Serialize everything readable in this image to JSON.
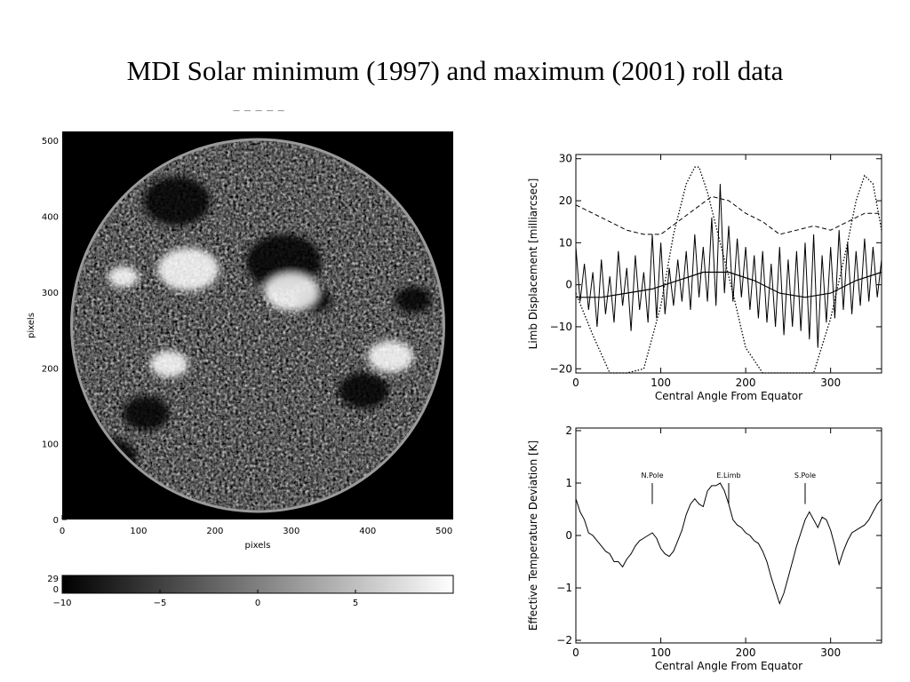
{
  "slide": {
    "title": "MDI Solar minimum (1997) and maximum (2001) roll data",
    "header_fragment": "— — — — —"
  },
  "colors": {
    "background": "#ffffff",
    "ink": "#000000",
    "disk_edge": "#9a9a9a"
  },
  "chart_data": [
    {
      "type": "heatmap",
      "title": "",
      "xlabel": "pixels",
      "ylabel": "pixels",
      "xlim": [
        0,
        512
      ],
      "ylim": [
        0,
        512
      ],
      "x_ticks": [
        "0",
        "100",
        "200",
        "300",
        "400",
        "500"
      ],
      "y_ticks": [
        "0",
        "100",
        "200",
        "300",
        "400",
        "500"
      ],
      "description_values": {
        "disk_center": [
          256,
          256
        ],
        "disk_radius": 250,
        "dark_regions": [
          [
            60,
            80,
            35
          ],
          [
            150,
            420,
            40
          ],
          [
            290,
            340,
            45
          ],
          [
            395,
            170,
            30
          ],
          [
            460,
            290,
            22
          ],
          [
            110,
            140,
            28
          ],
          [
            330,
            290,
            20
          ]
        ],
        "bright_regions": [
          [
            165,
            330,
            40
          ],
          [
            300,
            300,
            35
          ],
          [
            430,
            215,
            30
          ],
          [
            140,
            205,
            25
          ],
          [
            80,
            320,
            20
          ]
        ]
      },
      "colorbar": {
        "range": [
          -10,
          10
        ],
        "ticks": [
          "−10",
          "−5",
          "0",
          "5"
        ],
        "tick_values": [
          -10,
          -5,
          0,
          5
        ],
        "side_labels": [
          "29",
          "0"
        ]
      }
    },
    {
      "type": "line",
      "title": "",
      "xlabel": "Central Angle From Equator",
      "ylabel": "Limb Displacement [milliarcsec]",
      "xlim": [
        0,
        360
      ],
      "ylim": [
        -21,
        31
      ],
      "x_ticks": [
        "0",
        "100",
        "200",
        "300"
      ],
      "x_tick_values": [
        0,
        100,
        200,
        300
      ],
      "y_ticks": [
        "−20",
        "−10",
        "0",
        "10",
        "20",
        "30"
      ],
      "y_tick_values": [
        -20,
        -10,
        0,
        10,
        20,
        30
      ],
      "series": [
        {
          "style": "dashed",
          "x": [
            0,
            20,
            40,
            60,
            80,
            100,
            120,
            140,
            160,
            180,
            200,
            220,
            240,
            260,
            280,
            300,
            320,
            340,
            360
          ],
          "y": [
            19,
            17,
            15,
            13,
            12,
            12,
            15,
            18,
            21,
            20,
            17,
            15,
            12,
            13,
            14,
            13,
            15,
            17,
            17
          ]
        },
        {
          "style": "dotted",
          "x": [
            0,
            20,
            40,
            60,
            80,
            100,
            115,
            130,
            140,
            145,
            155,
            170,
            185,
            200,
            220,
            240,
            260,
            280,
            300,
            320,
            330,
            340,
            350,
            360
          ],
          "y": [
            -2,
            -12,
            -21,
            -21,
            -20,
            -5,
            12,
            24,
            28,
            28,
            22,
            10,
            -2,
            -15,
            -21,
            -21,
            -21,
            -21,
            -8,
            10,
            20,
            26,
            24,
            13
          ]
        },
        {
          "style": "smooth-solid",
          "x": [
            0,
            30,
            60,
            90,
            120,
            150,
            180,
            210,
            240,
            270,
            300,
            330,
            360
          ],
          "y": [
            -3,
            -3,
            -2,
            -1,
            1,
            3,
            3,
            1,
            -2,
            -3,
            -2,
            1,
            3
          ]
        },
        {
          "style": "noisy-solid",
          "x": [
            0,
            5,
            10,
            15,
            20,
            25,
            30,
            35,
            40,
            45,
            50,
            55,
            60,
            65,
            70,
            75,
            80,
            85,
            90,
            95,
            100,
            105,
            110,
            115,
            120,
            125,
            130,
            135,
            140,
            145,
            150,
            155,
            160,
            165,
            170,
            175,
            180,
            185,
            190,
            195,
            200,
            205,
            210,
            215,
            220,
            225,
            230,
            235,
            240,
            245,
            250,
            255,
            260,
            265,
            270,
            275,
            280,
            285,
            290,
            295,
            300,
            305,
            310,
            315,
            320,
            325,
            330,
            335,
            340,
            345,
            350,
            355,
            360
          ],
          "y": [
            9,
            -4,
            5,
            -6,
            3,
            -10,
            6,
            -7,
            2,
            -9,
            8,
            -5,
            4,
            -11,
            7,
            -6,
            3,
            -9,
            12,
            -8,
            10,
            -7,
            4,
            -5,
            6,
            -4,
            8,
            -6,
            12,
            -3,
            9,
            -4,
            16,
            -5,
            24,
            -2,
            14,
            -4,
            11,
            -3,
            9,
            -6,
            7,
            -8,
            8,
            -9,
            5,
            -10,
            9,
            -12,
            6,
            -10,
            8,
            -11,
            10,
            -13,
            12,
            -15,
            7,
            -9,
            9,
            -8,
            13,
            -6,
            10,
            -7,
            8,
            -5,
            11,
            -4,
            9,
            -3,
            6
          ]
        }
      ]
    },
    {
      "type": "line",
      "title": "",
      "xlabel": "Central Angle From Equator",
      "ylabel": "Effective Temperature Deviation [K]",
      "xlim": [
        0,
        360
      ],
      "ylim": [
        -2.05,
        2.05
      ],
      "x_ticks": [
        "0",
        "100",
        "200",
        "300"
      ],
      "x_tick_values": [
        0,
        100,
        200,
        300
      ],
      "y_ticks": [
        "−2",
        "−1",
        "0",
        "1",
        "2"
      ],
      "y_tick_values": [
        -2,
        -1,
        0,
        1,
        2
      ],
      "annotations": [
        {
          "text": "N.Pole",
          "x": 90,
          "y_from": 0.6,
          "y_to": 1.0
        },
        {
          "text": "E.Limb",
          "x": 180,
          "y_from": 0.6,
          "y_to": 1.0
        },
        {
          "text": "S.Pole",
          "x": 270,
          "y_from": 0.6,
          "y_to": 1.0
        }
      ],
      "series": [
        {
          "style": "solid",
          "x": [
            0,
            5,
            10,
            15,
            20,
            25,
            30,
            35,
            40,
            45,
            50,
            55,
            60,
            65,
            70,
            75,
            80,
            85,
            90,
            95,
            100,
            105,
            110,
            115,
            120,
            125,
            130,
            135,
            140,
            145,
            150,
            155,
            160,
            165,
            170,
            175,
            180,
            185,
            190,
            195,
            200,
            205,
            210,
            215,
            220,
            225,
            230,
            235,
            240,
            245,
            250,
            255,
            260,
            265,
            270,
            275,
            280,
            285,
            290,
            295,
            300,
            305,
            310,
            315,
            320,
            325,
            330,
            335,
            340,
            345,
            350,
            355,
            360
          ],
          "y": [
            0.7,
            0.45,
            0.3,
            0.05,
            0.0,
            -0.1,
            -0.2,
            -0.3,
            -0.35,
            -0.5,
            -0.5,
            -0.6,
            -0.45,
            -0.35,
            -0.2,
            -0.1,
            -0.05,
            0.0,
            0.05,
            -0.05,
            -0.25,
            -0.35,
            -0.4,
            -0.3,
            -0.1,
            0.1,
            0.4,
            0.6,
            0.7,
            0.6,
            0.55,
            0.85,
            0.95,
            0.95,
            1.0,
            0.85,
            0.6,
            0.3,
            0.2,
            0.15,
            0.05,
            0.0,
            -0.1,
            -0.15,
            -0.3,
            -0.5,
            -0.8,
            -1.05,
            -1.3,
            -1.1,
            -0.8,
            -0.5,
            -0.2,
            0.05,
            0.3,
            0.45,
            0.3,
            0.15,
            0.35,
            0.3,
            0.1,
            -0.2,
            -0.55,
            -0.3,
            -0.1,
            0.05,
            0.1,
            0.15,
            0.2,
            0.3,
            0.45,
            0.6,
            0.7
          ]
        }
      ]
    }
  ]
}
